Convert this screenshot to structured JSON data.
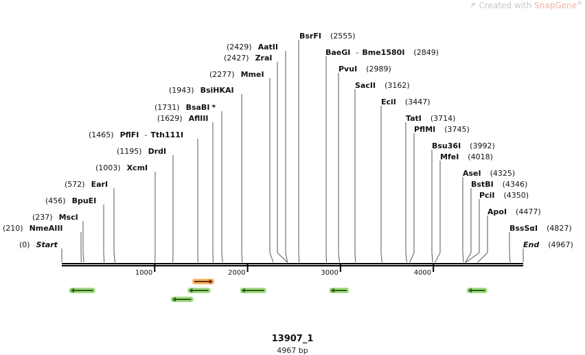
{
  "watermark": {
    "prefix": "Created with ",
    "brand": "SnapGene",
    "mark": "®"
  },
  "plasmid": {
    "name": "13907_1",
    "length_label": "4967 bp",
    "length": 4967
  },
  "axis": {
    "ticks": [
      1000,
      2000,
      3000,
      4000
    ]
  },
  "colors": {
    "feature_fill": "#8fd36a",
    "feature_arrow": "#2f5a1a",
    "orange_fill": "#f4a640",
    "orange_arrow": "#6b2e00",
    "line": "#555555"
  },
  "sites": [
    {
      "name": "Start",
      "pos": 0,
      "italic": true
    },
    {
      "name": "NmeAIII",
      "pos": 210
    },
    {
      "name": "MscI",
      "pos": 237
    },
    {
      "name": "BpuEI",
      "pos": 456
    },
    {
      "name": "EarI",
      "pos": 572
    },
    {
      "name": "XcmI",
      "pos": 1003
    },
    {
      "name": "DrdI",
      "pos": 1195
    },
    {
      "name": "PflFI",
      "name2": "Tth111I",
      "pos": 1465
    },
    {
      "name": "AflIII",
      "pos": 1629
    },
    {
      "name": "BsaBI",
      "pos": 1731,
      "star": "*"
    },
    {
      "name": "BsiHKAI",
      "pos": 1943
    },
    {
      "name": "MmeI",
      "pos": 2277
    },
    {
      "name": "ZraI",
      "pos": 2427
    },
    {
      "name": "AatII",
      "pos": 2429
    },
    {
      "name": "BsrFI",
      "pos": 2555
    },
    {
      "name": "BaeGI",
      "name2": "Bme1580I",
      "pos": 2849
    },
    {
      "name": "PvuI",
      "pos": 2989
    },
    {
      "name": "SacII",
      "pos": 3162
    },
    {
      "name": "EciI",
      "pos": 3447
    },
    {
      "name": "TatI",
      "pos": 3714
    },
    {
      "name": "PflMI",
      "pos": 3745
    },
    {
      "name": "Bsu36I",
      "pos": 3992
    },
    {
      "name": "MfeI",
      "pos": 4018
    },
    {
      "name": "AseI",
      "pos": 4325
    },
    {
      "name": "BstBI",
      "pos": 4346
    },
    {
      "name": "PciI",
      "pos": 4350
    },
    {
      "name": "ApoI",
      "pos": 4477
    },
    {
      "name": "BssSαI",
      "pos": 4827
    },
    {
      "name": "End",
      "pos": 4967,
      "italic": true
    }
  ],
  "features": [
    {
      "start": 80,
      "end": 360,
      "dir": "reverse",
      "color": "green",
      "row": 1
    },
    {
      "start": 1405,
      "end": 1640,
      "dir": "forward",
      "color": "orange",
      "row": 0
    },
    {
      "start": 1355,
      "end": 1600,
      "dir": "reverse",
      "color": "green",
      "row": 1
    },
    {
      "start": 1175,
      "end": 1415,
      "dir": "reverse",
      "color": "green",
      "row": 2
    },
    {
      "start": 1920,
      "end": 2200,
      "dir": "reverse",
      "color": "green",
      "row": 1
    },
    {
      "start": 2880,
      "end": 3090,
      "dir": "reverse",
      "color": "green",
      "row": 1
    },
    {
      "start": 4360,
      "end": 4580,
      "dir": "reverse",
      "color": "green",
      "row": 1
    }
  ]
}
